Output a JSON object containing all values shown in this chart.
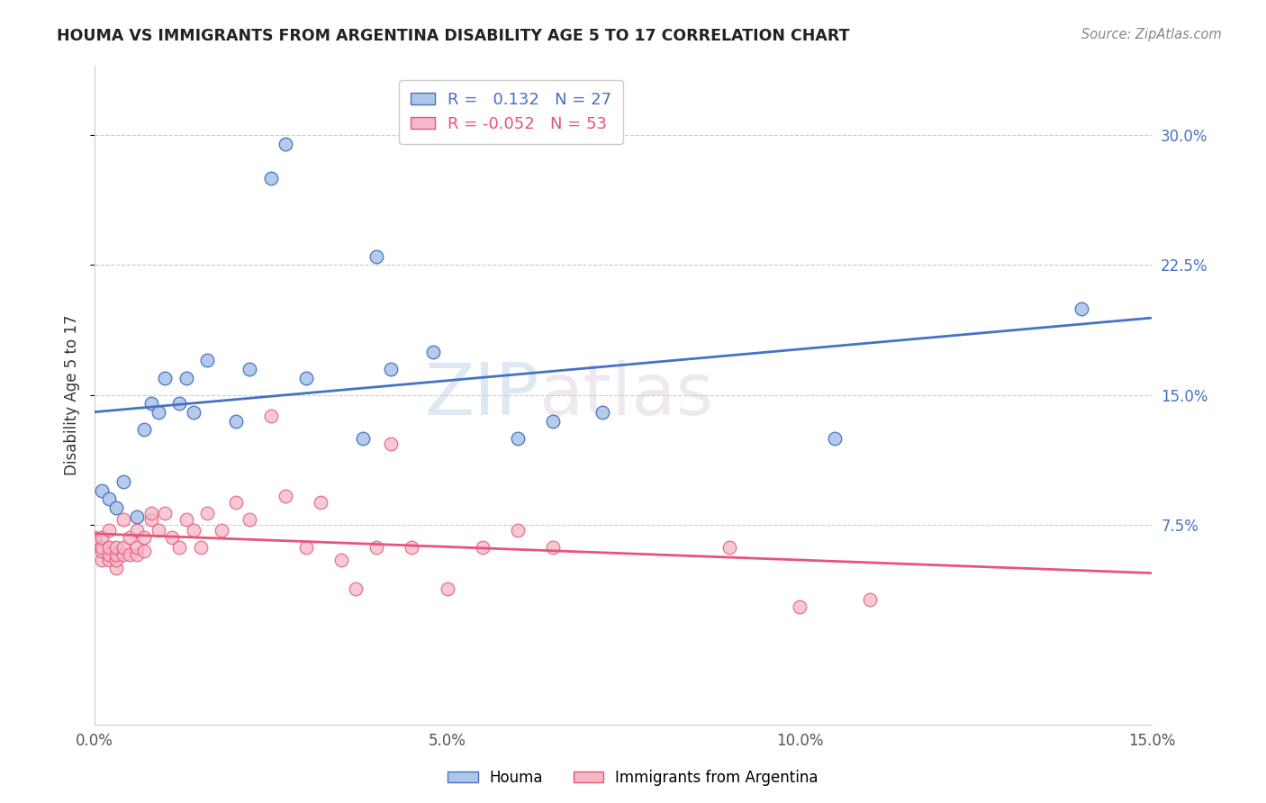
{
  "title": "HOUMA VS IMMIGRANTS FROM ARGENTINA DISABILITY AGE 5 TO 17 CORRELATION CHART",
  "source": "Source: ZipAtlas.com",
  "ylabel_label": "Disability Age 5 to 17",
  "xlim": [
    0.0,
    0.15
  ],
  "ylim": [
    -0.04,
    0.34
  ],
  "xticks": [
    0.0,
    0.05,
    0.1,
    0.15
  ],
  "xticklabels": [
    "0.0%",
    "5.0%",
    "10.0%",
    "15.0%"
  ],
  "yticks_right": [
    0.075,
    0.15,
    0.225,
    0.3
  ],
  "yticklabels_right": [
    "7.5%",
    "15.0%",
    "22.5%",
    "30.0%"
  ],
  "houma_R": 0.132,
  "houma_N": 27,
  "argentina_R": -0.052,
  "argentina_N": 53,
  "houma_color": "#aec6e8",
  "houma_line_color": "#4472c4",
  "argentina_color": "#f4b8c8",
  "argentina_line_color": "#e8547a",
  "watermark_zip": "ZIP",
  "watermark_atlas": "atlas",
  "legend_houma": "Houma",
  "legend_argentina": "Immigrants from Argentina",
  "houma_x": [
    0.001,
    0.002,
    0.003,
    0.004,
    0.006,
    0.007,
    0.008,
    0.009,
    0.01,
    0.012,
    0.013,
    0.014,
    0.016,
    0.02,
    0.022,
    0.025,
    0.027,
    0.03,
    0.038,
    0.04,
    0.042,
    0.048,
    0.06,
    0.065,
    0.072,
    0.105,
    0.14
  ],
  "houma_y": [
    0.095,
    0.09,
    0.085,
    0.1,
    0.08,
    0.13,
    0.145,
    0.14,
    0.16,
    0.145,
    0.16,
    0.14,
    0.17,
    0.135,
    0.165,
    0.275,
    0.295,
    0.16,
    0.125,
    0.23,
    0.165,
    0.175,
    0.125,
    0.135,
    0.14,
    0.125,
    0.2
  ],
  "argentina_x": [
    0.0,
    0.0,
    0.001,
    0.001,
    0.001,
    0.001,
    0.002,
    0.002,
    0.002,
    0.002,
    0.003,
    0.003,
    0.003,
    0.003,
    0.004,
    0.004,
    0.004,
    0.005,
    0.005,
    0.006,
    0.006,
    0.006,
    0.007,
    0.007,
    0.008,
    0.008,
    0.009,
    0.01,
    0.011,
    0.012,
    0.013,
    0.014,
    0.015,
    0.016,
    0.018,
    0.02,
    0.022,
    0.025,
    0.027,
    0.03,
    0.032,
    0.035,
    0.037,
    0.04,
    0.042,
    0.045,
    0.05,
    0.055,
    0.06,
    0.065,
    0.09,
    0.1,
    0.11
  ],
  "argentina_y": [
    0.065,
    0.068,
    0.055,
    0.06,
    0.062,
    0.068,
    0.055,
    0.058,
    0.062,
    0.072,
    0.05,
    0.055,
    0.058,
    0.062,
    0.058,
    0.062,
    0.078,
    0.058,
    0.068,
    0.058,
    0.062,
    0.072,
    0.06,
    0.068,
    0.078,
    0.082,
    0.072,
    0.082,
    0.068,
    0.062,
    0.078,
    0.072,
    0.062,
    0.082,
    0.072,
    0.088,
    0.078,
    0.138,
    0.092,
    0.062,
    0.088,
    0.055,
    0.038,
    0.062,
    0.122,
    0.062,
    0.038,
    0.062,
    0.072,
    0.062,
    0.062,
    0.028,
    0.032
  ]
}
